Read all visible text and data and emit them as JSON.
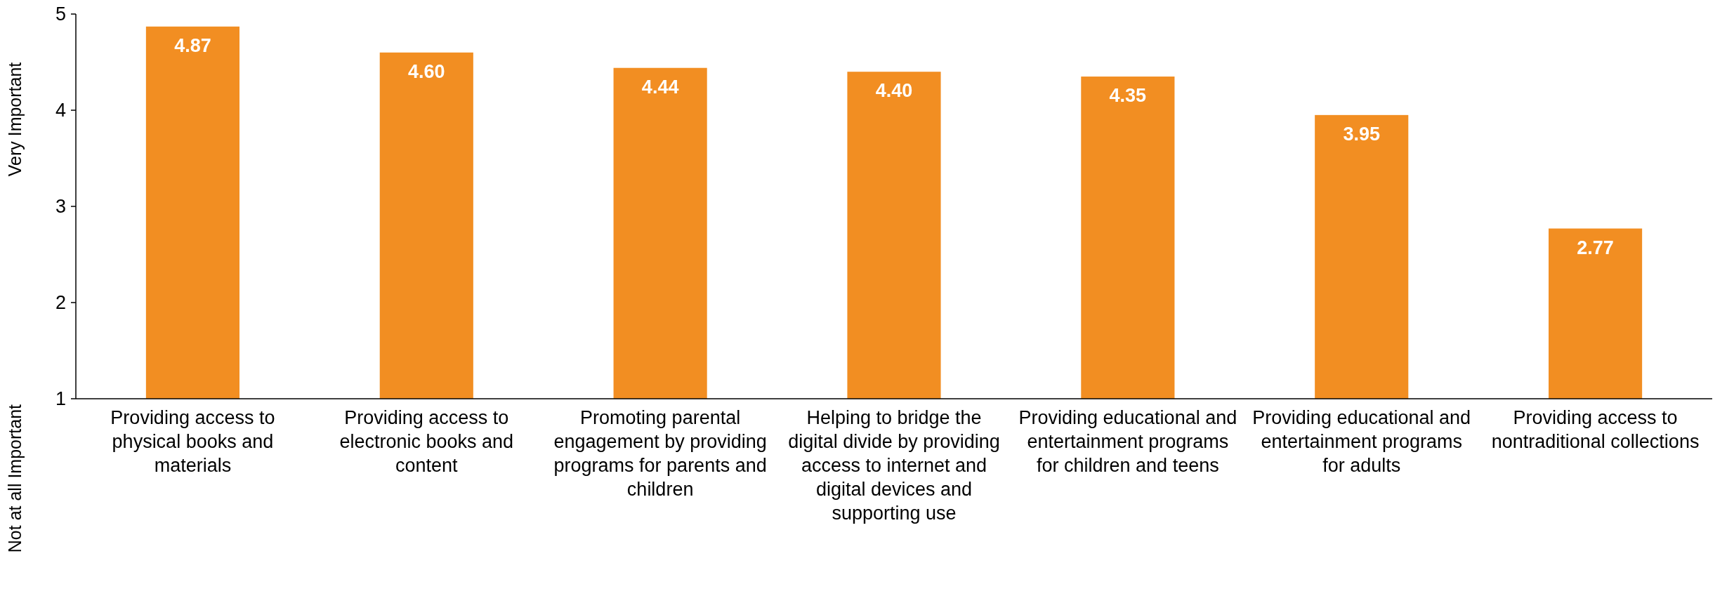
{
  "chart_data": {
    "type": "bar",
    "categories": [
      "Providing access to physical books and materials",
      "Providing access to electronic books and content",
      "Promoting parental engagement by providing programs for parents and children",
      "Helping to bridge the digital divide by providing access to internet and digital devices and supporting use",
      "Providing educational and entertainment programs for children and teens",
      "Providing educational and entertainment programs for adults",
      "Providing access to nontraditional collections"
    ],
    "values": [
      4.87,
      4.6,
      4.44,
      4.4,
      4.35,
      3.95,
      2.77
    ],
    "color": "#f28e22",
    "ylim": [
      1,
      5
    ],
    "yticks": [
      1,
      2,
      3,
      4,
      5
    ],
    "ylabel": "Not at all Important",
    "annotations": [
      "Very Important"
    ],
    "value_labels": [
      "4.87",
      "4.60",
      "4.44",
      "4.40",
      "4.35",
      "3.95",
      "2.77"
    ],
    "grid": false
  }
}
